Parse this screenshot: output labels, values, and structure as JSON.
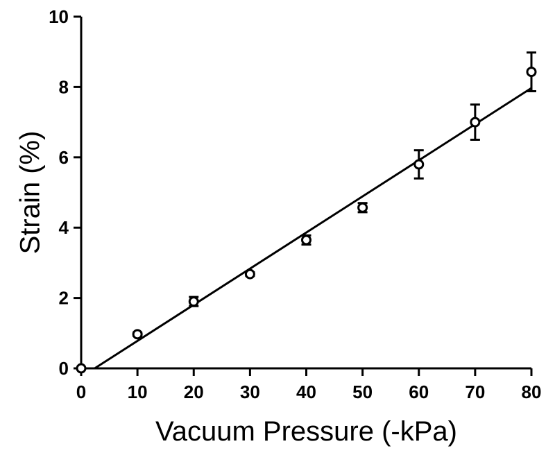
{
  "chart_data": {
    "type": "scatter",
    "title": "",
    "xlabel": "Vacuum Pressure (-kPa)",
    "ylabel": "Strain (%)",
    "xlim": [
      0,
      80
    ],
    "ylim": [
      0,
      10
    ],
    "xticks": [
      0,
      10,
      20,
      30,
      40,
      50,
      60,
      70,
      80
    ],
    "yticks": [
      0,
      2,
      4,
      6,
      8,
      10
    ],
    "xtick_labels": [
      "0",
      "10",
      "20",
      "30",
      "40",
      "50",
      "60",
      "70",
      "80"
    ],
    "ytick_labels": [
      "0",
      "2",
      "4",
      "6",
      "8",
      "10"
    ],
    "grid": false,
    "legend": "none",
    "series": [
      {
        "marker": "open-circle",
        "x": [
          0,
          10,
          20,
          30,
          40,
          50,
          60,
          70,
          80
        ],
        "y": [
          0,
          0.97,
          1.9,
          2.68,
          3.65,
          4.57,
          5.8,
          7.0,
          8.43
        ],
        "error": [
          0,
          0.05,
          0.13,
          0.05,
          0.13,
          0.13,
          0.4,
          0.5,
          0.55
        ]
      }
    ],
    "fit_line": {
      "x": [
        2.4,
        80
      ],
      "y": [
        0,
        7.97
      ]
    }
  }
}
